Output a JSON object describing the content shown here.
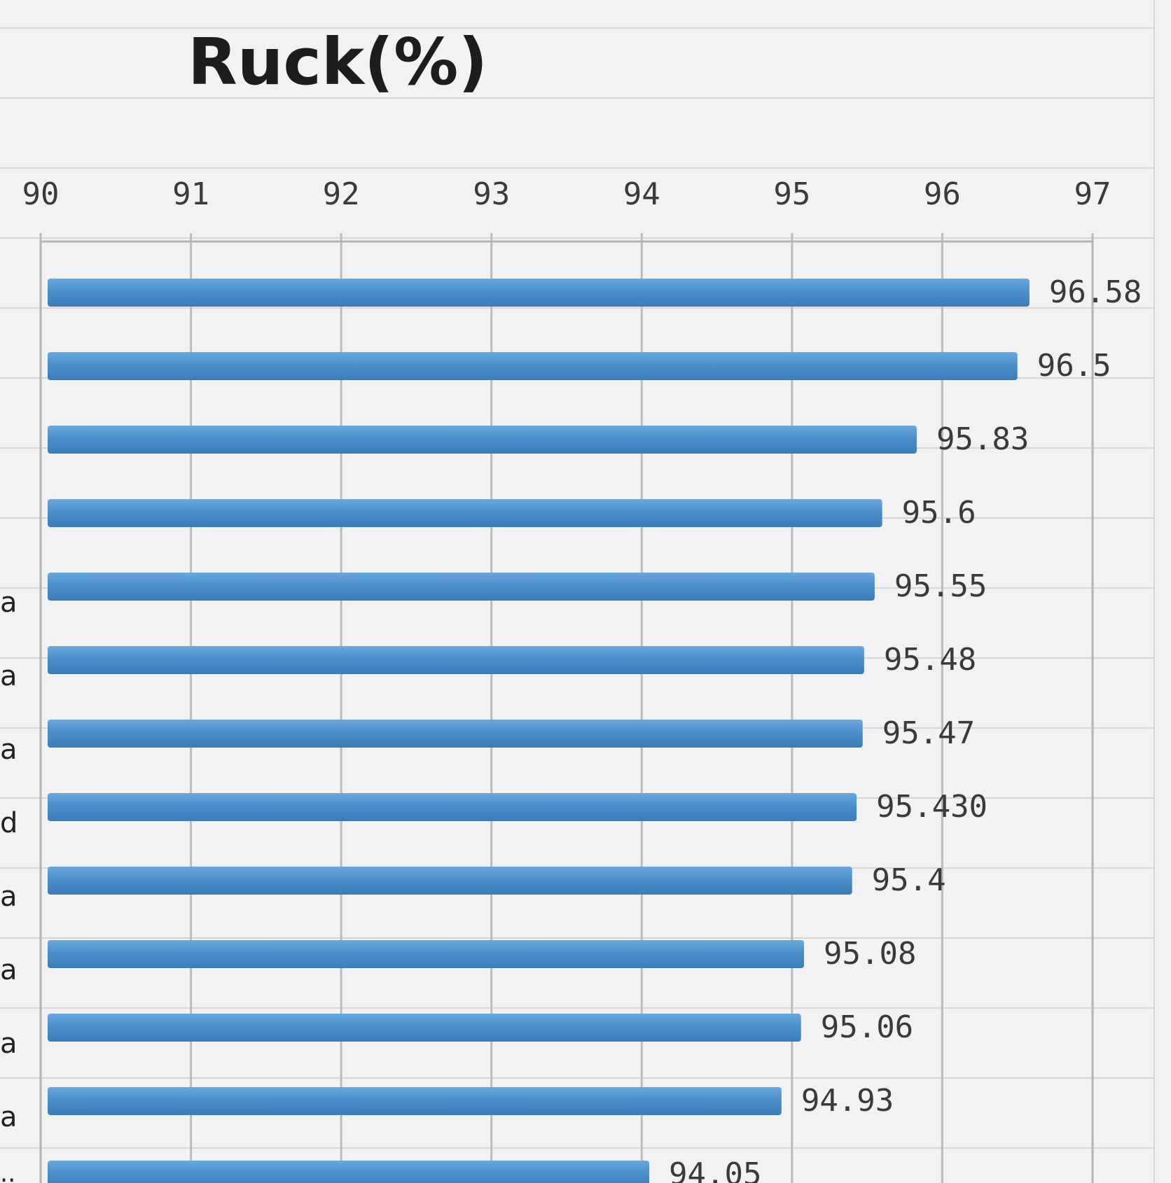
{
  "chart_data": {
    "type": "bar",
    "orientation": "horizontal",
    "title": "Ruck(%)",
    "xlabel": "",
    "ylabel": "",
    "xlim": [
      90,
      97
    ],
    "xticks": [
      "90",
      "91",
      "92",
      "93",
      "94",
      "95",
      "96",
      "97"
    ],
    "x_axis_position": "top",
    "grid": true,
    "legend": "none",
    "bar_color": "#4a8fcb",
    "categories": [
      "",
      "",
      "",
      "",
      "",
      "",
      "",
      "",
      "",
      "",
      "",
      "",
      ""
    ],
    "category_fragments": [
      "",
      "",
      "",
      "",
      "a",
      "a",
      "a",
      "d",
      "a",
      "a",
      "a",
      "a",
      "ji"
    ],
    "values": [
      96.58,
      96.5,
      95.83,
      95.6,
      95.55,
      95.48,
      95.47,
      95.43,
      95.4,
      95.08,
      95.06,
      94.93,
      94.05
    ],
    "data_labels": [
      "96.58",
      "96.5",
      "95.83",
      "95.6",
      "95.55",
      "95.48",
      "95.47",
      "95.430",
      "95.4",
      "95.08",
      "95.06",
      "94.93",
      "94.05"
    ]
  }
}
